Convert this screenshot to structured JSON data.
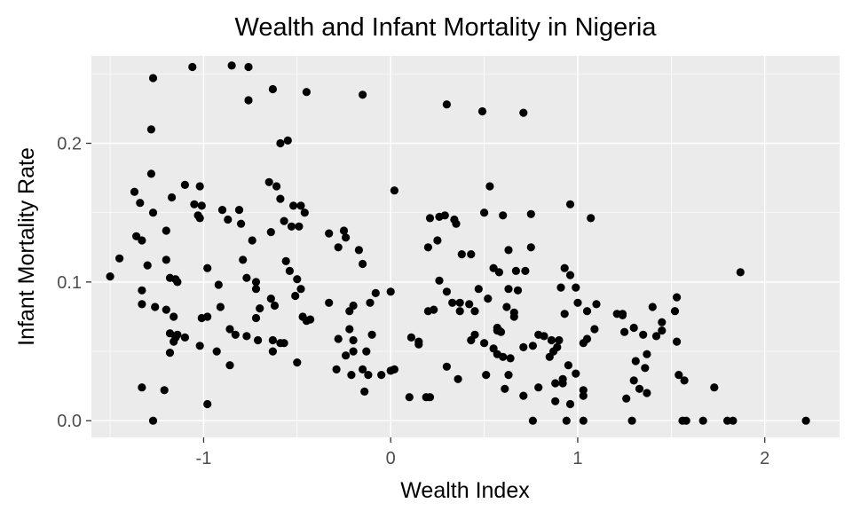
{
  "chart_data": {
    "type": "scatter",
    "title": "Wealth and Infant Mortality in Nigeria",
    "xlabel": "Wealth Index",
    "ylabel": "Infant Mortality Rate",
    "xlim": [
      -1.6,
      2.4
    ],
    "ylim": [
      -0.012,
      0.263
    ],
    "x_ticks": [
      -1,
      0,
      1,
      2
    ],
    "x_tick_labels": [
      "-1",
      "0",
      "1",
      "2"
    ],
    "y_ticks": [
      0.0,
      0.1,
      0.2
    ],
    "y_tick_labels": [
      "0.0",
      "0.1",
      "0.2"
    ],
    "grid": true,
    "panel_color": "#ebebeb",
    "grid_color": "#ffffff",
    "point_color": "#000000",
    "points": [
      [
        -1.06,
        0.255
      ],
      [
        -0.85,
        0.256
      ],
      [
        -0.76,
        0.255
      ],
      [
        -1.27,
        0.247
      ],
      [
        -0.63,
        0.239
      ],
      [
        -0.45,
        0.237
      ],
      [
        -0.76,
        0.231
      ],
      [
        -0.15,
        0.235
      ],
      [
        0.3,
        0.228
      ],
      [
        0.49,
        0.223
      ],
      [
        0.71,
        0.222
      ],
      [
        -1.28,
        0.21
      ],
      [
        -0.55,
        0.202
      ],
      [
        -0.59,
        0.2
      ],
      [
        -1.28,
        0.178
      ],
      [
        -0.65,
        0.172
      ],
      [
        -0.61,
        0.169
      ],
      [
        -1.1,
        0.17
      ],
      [
        -1.02,
        0.169
      ],
      [
        -1.37,
        0.165
      ],
      [
        -1.17,
        0.161
      ],
      [
        -0.59,
        0.16
      ],
      [
        -0.52,
        0.155
      ],
      [
        -1.05,
        0.156
      ],
      [
        -1.01,
        0.155
      ],
      [
        -1.34,
        0.157
      ],
      [
        -0.48,
        0.155
      ],
      [
        -1.27,
        0.15
      ],
      [
        -0.9,
        0.152
      ],
      [
        -1.03,
        0.148
      ],
      [
        -0.81,
        0.152
      ],
      [
        -0.46,
        0.15
      ],
      [
        -1.02,
        0.146
      ],
      [
        -0.87,
        0.145
      ],
      [
        -0.57,
        0.144
      ],
      [
        -0.8,
        0.142
      ],
      [
        0.02,
        0.166
      ],
      [
        0.53,
        0.169
      ],
      [
        0.96,
        0.156
      ],
      [
        0.5,
        0.15
      ],
      [
        0.29,
        0.148
      ],
      [
        0.21,
        0.146
      ],
      [
        0.26,
        0.147
      ],
      [
        0.34,
        0.145
      ],
      [
        0.6,
        0.148
      ],
      [
        0.75,
        0.149
      ],
      [
        1.07,
        0.146
      ],
      [
        -0.53,
        0.14
      ],
      [
        -0.49,
        0.14
      ],
      [
        -1.36,
        0.133
      ],
      [
        -1.33,
        0.13
      ],
      [
        -1.2,
        0.137
      ],
      [
        -0.33,
        0.135
      ],
      [
        -0.25,
        0.137
      ],
      [
        -0.24,
        0.132
      ],
      [
        -0.64,
        0.136
      ],
      [
        -0.74,
        0.13
      ],
      [
        -0.28,
        0.125
      ],
      [
        -0.17,
        0.123
      ],
      [
        0.25,
        0.13
      ],
      [
        0.35,
        0.142
      ],
      [
        0.2,
        0.125
      ],
      [
        0.38,
        0.12
      ],
      [
        0.43,
        0.12
      ],
      [
        0.63,
        0.123
      ],
      [
        0.75,
        0.125
      ],
      [
        -1.45,
        0.117
      ],
      [
        -1.3,
        0.112
      ],
      [
        -1.2,
        0.116
      ],
      [
        -0.98,
        0.11
      ],
      [
        -0.77,
        0.103
      ],
      [
        -0.72,
        0.1
      ],
      [
        -0.79,
        0.116
      ],
      [
        -0.56,
        0.115
      ],
      [
        -0.54,
        0.108
      ],
      [
        -0.5,
        0.102
      ],
      [
        -0.15,
        0.113
      ],
      [
        -1.18,
        0.103
      ],
      [
        -1.15,
        0.102
      ],
      [
        -1.14,
        0.1
      ],
      [
        -1.5,
        0.104
      ],
      [
        -0.92,
        0.098
      ],
      [
        -0.72,
        0.095
      ],
      [
        -1.33,
        0.094
      ],
      [
        -0.64,
        0.088
      ],
      [
        -0.51,
        0.09
      ],
      [
        -0.48,
        0.095
      ],
      [
        -0.11,
        0.085
      ],
      [
        -0.08,
        0.092
      ],
      [
        0.0,
        0.093
      ],
      [
        0.26,
        0.101
      ],
      [
        0.3,
        0.093
      ],
      [
        0.37,
        0.085
      ],
      [
        0.42,
        0.084
      ],
      [
        0.55,
        0.11
      ],
      [
        0.58,
        0.107
      ],
      [
        0.67,
        0.108
      ],
      [
        0.72,
        0.108
      ],
      [
        0.47,
        0.095
      ],
      [
        0.52,
        0.088
      ],
      [
        0.63,
        0.095
      ],
      [
        0.68,
        0.094
      ],
      [
        0.91,
        0.096
      ],
      [
        0.93,
        0.11
      ],
      [
        0.96,
        0.105
      ],
      [
        0.99,
        0.096
      ],
      [
        1.0,
        0.085
      ],
      [
        -1.33,
        0.084
      ],
      [
        -1.26,
        0.082
      ],
      [
        -1.2,
        0.08
      ],
      [
        -0.91,
        0.082
      ],
      [
        -0.7,
        0.081
      ],
      [
        -0.62,
        0.083
      ],
      [
        -0.43,
        0.073
      ],
      [
        -0.33,
        0.085
      ],
      [
        -1.16,
        0.075
      ],
      [
        -1.01,
        0.074
      ],
      [
        -0.98,
        0.075
      ],
      [
        -0.72,
        0.074
      ],
      [
        -0.47,
        0.075
      ],
      [
        -0.45,
        0.072
      ],
      [
        -0.22,
        0.066
      ],
      [
        -0.22,
        0.079
      ],
      [
        -0.2,
        0.083
      ],
      [
        0.2,
        0.079
      ],
      [
        0.23,
        0.08
      ],
      [
        0.33,
        0.085
      ],
      [
        0.45,
        0.079
      ],
      [
        0.57,
        0.067
      ],
      [
        0.58,
        0.065
      ],
      [
        0.62,
        0.082
      ],
      [
        0.66,
        0.078
      ],
      [
        0.66,
        0.075
      ],
      [
        0.37,
        0.079
      ],
      [
        1.05,
        0.079
      ],
      [
        1.1,
        0.084
      ],
      [
        1.24,
        0.077
      ],
      [
        1.21,
        0.077
      ],
      [
        1.25,
        0.064
      ],
      [
        1.4,
        0.082
      ],
      [
        1.42,
        0.061
      ],
      [
        1.45,
        0.071
      ],
      [
        1.53,
        0.089
      ],
      [
        1.52,
        0.079
      ],
      [
        1.24,
        0.076
      ],
      [
        1.35,
        0.062
      ],
      [
        0.93,
        0.077
      ],
      [
        1.09,
        0.066
      ],
      [
        1.3,
        0.067
      ],
      [
        -1.18,
        0.063
      ],
      [
        -1.15,
        0.06
      ],
      [
        -1.14,
        0.062
      ],
      [
        -1.1,
        0.06
      ],
      [
        -1.16,
        0.057
      ],
      [
        -0.86,
        0.066
      ],
      [
        -0.83,
        0.062
      ],
      [
        -0.77,
        0.061
      ],
      [
        -0.71,
        0.058
      ],
      [
        -0.63,
        0.058
      ],
      [
        -0.59,
        0.056
      ],
      [
        -0.57,
        0.056
      ],
      [
        -0.28,
        0.059
      ],
      [
        -0.2,
        0.058
      ],
      [
        -0.1,
        0.062
      ],
      [
        0.11,
        0.06
      ],
      [
        0.15,
        0.057
      ],
      [
        0.15,
        0.055
      ],
      [
        0.43,
        0.058
      ],
      [
        0.45,
        0.062
      ],
      [
        0.5,
        0.056
      ],
      [
        0.55,
        0.052
      ],
      [
        0.57,
        0.065
      ],
      [
        0.59,
        0.064
      ],
      [
        0.76,
        0.054
      ],
      [
        0.79,
        0.062
      ],
      [
        0.82,
        0.061
      ],
      [
        0.86,
        0.058
      ],
      [
        0.9,
        0.058
      ],
      [
        1.05,
        0.059
      ],
      [
        1.03,
        0.056
      ],
      [
        1.45,
        0.065
      ],
      [
        1.53,
        0.057
      ],
      [
        -1.18,
        0.049
      ],
      [
        -1.02,
        0.054
      ],
      [
        -0.93,
        0.05
      ],
      [
        -0.63,
        0.05
      ],
      [
        -0.24,
        0.047
      ],
      [
        -0.2,
        0.05
      ],
      [
        -0.13,
        0.05
      ],
      [
        0.3,
        0.039
      ],
      [
        0.57,
        0.048
      ],
      [
        0.6,
        0.046
      ],
      [
        0.64,
        0.045
      ],
      [
        0.71,
        0.053
      ],
      [
        0.89,
        0.053
      ],
      [
        0.87,
        0.05
      ],
      [
        0.85,
        0.046
      ],
      [
        1.37,
        0.048
      ],
      [
        1.31,
        0.043
      ],
      [
        -0.86,
        0.04
      ],
      [
        -0.5,
        0.042
      ],
      [
        -0.29,
        0.037
      ],
      [
        -0.21,
        0.033
      ],
      [
        -0.15,
        0.037
      ],
      [
        -0.12,
        0.033
      ],
      [
        -0.05,
        0.033
      ],
      [
        0.0,
        0.036
      ],
      [
        0.02,
        0.037
      ],
      [
        0.36,
        0.03
      ],
      [
        0.51,
        0.033
      ],
      [
        0.63,
        0.033
      ],
      [
        0.92,
        0.03
      ],
      [
        0.95,
        0.04
      ],
      [
        0.99,
        0.034
      ],
      [
        1.36,
        0.038
      ],
      [
        1.54,
        0.033
      ],
      [
        1.57,
        0.029
      ],
      [
        1.3,
        0.029
      ],
      [
        1.33,
        0.023
      ],
      [
        -1.33,
        0.024
      ],
      [
        -1.21,
        0.022
      ],
      [
        -0.14,
        0.021
      ],
      [
        0.1,
        0.017
      ],
      [
        0.19,
        0.017
      ],
      [
        0.21,
        0.017
      ],
      [
        0.61,
        0.023
      ],
      [
        0.71,
        0.018
      ],
      [
        0.79,
        0.024
      ],
      [
        0.88,
        0.027
      ],
      [
        0.92,
        0.027
      ],
      [
        1.03,
        0.022
      ],
      [
        1.03,
        0.018
      ],
      [
        1.37,
        0.02
      ],
      [
        1.73,
        0.024
      ],
      [
        1.26,
        0.016
      ],
      [
        -0.98,
        0.012
      ],
      [
        0.96,
        0.012
      ],
      [
        0.88,
        0.014
      ],
      [
        -1.27,
        0.0
      ],
      [
        0.76,
        0.0
      ],
      [
        0.94,
        0.0
      ],
      [
        1.03,
        0.0
      ],
      [
        1.29,
        0.0
      ],
      [
        1.56,
        0.0
      ],
      [
        1.58,
        0.0
      ],
      [
        1.67,
        0.0
      ],
      [
        1.8,
        0.0
      ],
      [
        1.83,
        0.0
      ],
      [
        2.22,
        0.0
      ],
      [
        1.87,
        0.107
      ]
    ]
  }
}
